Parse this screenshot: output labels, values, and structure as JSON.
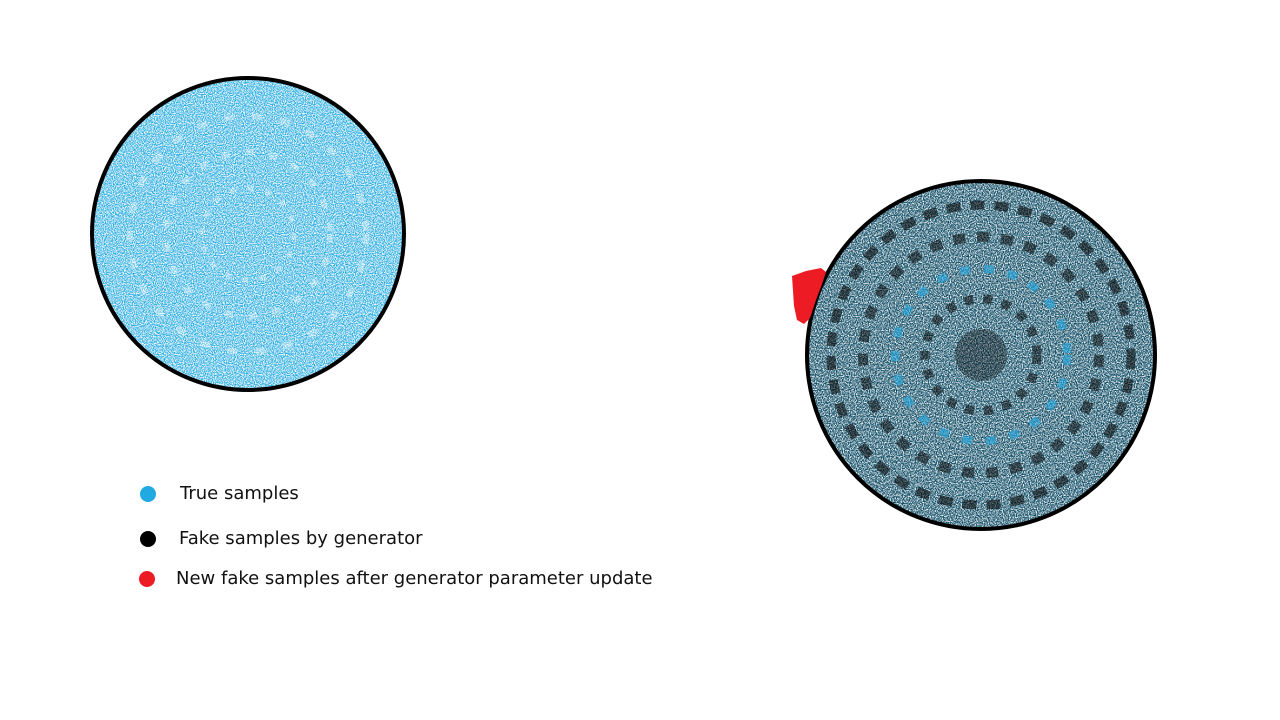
{
  "colors": {
    "true_samples": "#21a9e1",
    "fake_samples": "#000000",
    "new_fake_samples": "#ed1c24",
    "outline": "#000000",
    "background": "#ffffff"
  },
  "legend": [
    {
      "label": "True samples",
      "color": "#21a9e1"
    },
    {
      "label": "Fake samples by generator",
      "color": "#000000"
    },
    {
      "label": "New fake samples after generator parameter update",
      "color": "#ed1c24"
    }
  ]
}
